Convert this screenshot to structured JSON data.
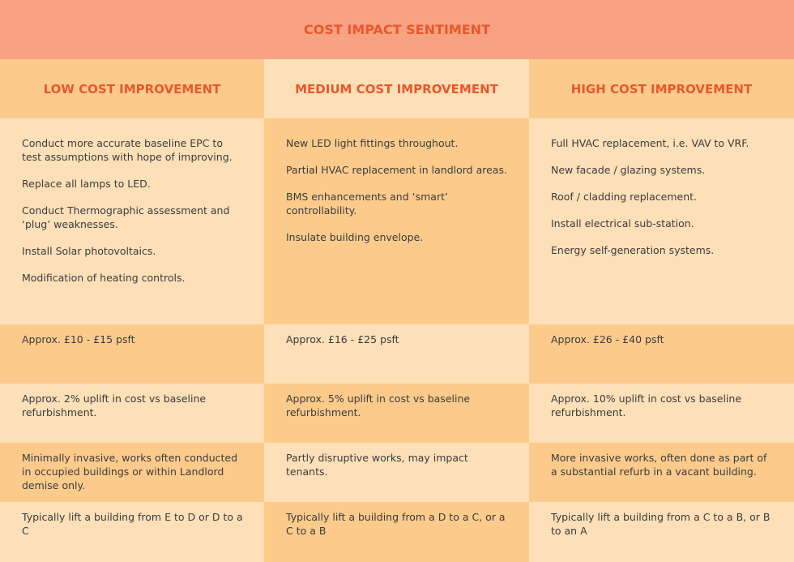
{
  "header": {
    "title": "COST IMPACT SENTIMENT"
  },
  "table": {
    "columns": [
      "LOW COST IMPROVEMENT",
      "MEDIUM COST IMPROVEMENT",
      "HIGH COST IMPROVEMENT"
    ],
    "rows": [
      [
        [
          "Conduct more accurate baseline EPC to test assumptions with hope of improving.",
          "Replace all lamps to LED.",
          "Conduct Thermographic assessment and ‘plug’ weaknesses.",
          "Install Solar photovoltaics.",
          "Modification of heating controls."
        ],
        [
          "New LED light fittings throughout.",
          "Partial HVAC replacement in landlord areas.",
          "BMS enhancements and ‘smart’ controllability.",
          "Insulate building envelope."
        ],
        [
          "Full HVAC replacement, i.e. VAV to VRF.",
          "New facade / glazing systems.",
          "Roof / cladding replacement.",
          "Install electrical sub-station.",
          "Energy self-generation systems."
        ]
      ],
      [
        "Approx. £10 - £15 psft",
        "Approx. £16 - £25 psft",
        "Approx. £26 - £40 psft"
      ],
      [
        "Approx. 2% uplift in cost vs baseline refurbishment.",
        "Approx. 5% uplift in cost vs baseline refurbishment.",
        "Approx. 10% uplift in cost vs baseline refurbishment."
      ],
      [
        "Minimally invasive, works often conducted in occupied buildings or within Landlord demise only.",
        "Partly disruptive works, may impact tenants.",
        "More invasive works, often done as part of a substantial refurb in a vacant building."
      ],
      [
        "Typically lift a building from E to D or D to a C",
        "Typically lift a building from a D to a C, or a C to a B",
        "Typically lift a building from a C to a B, or B to an A"
      ]
    ]
  }
}
